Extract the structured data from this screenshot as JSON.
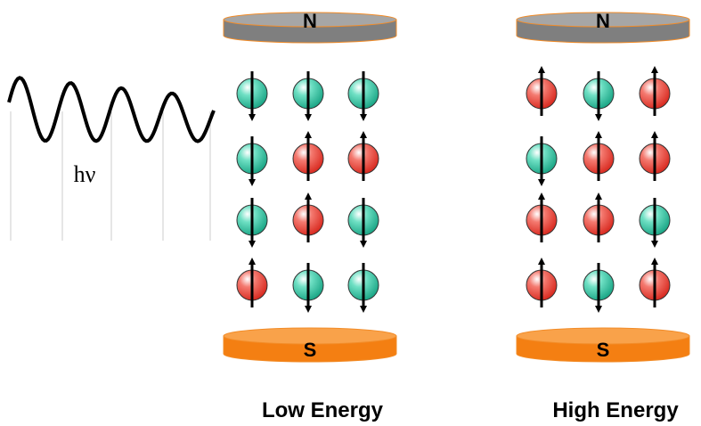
{
  "wave_label": "hν",
  "panels": [
    {
      "title": "Low Energy",
      "north": "N",
      "south": "S"
    },
    {
      "title": "High Energy",
      "north": "N",
      "south": "S"
    }
  ]
}
